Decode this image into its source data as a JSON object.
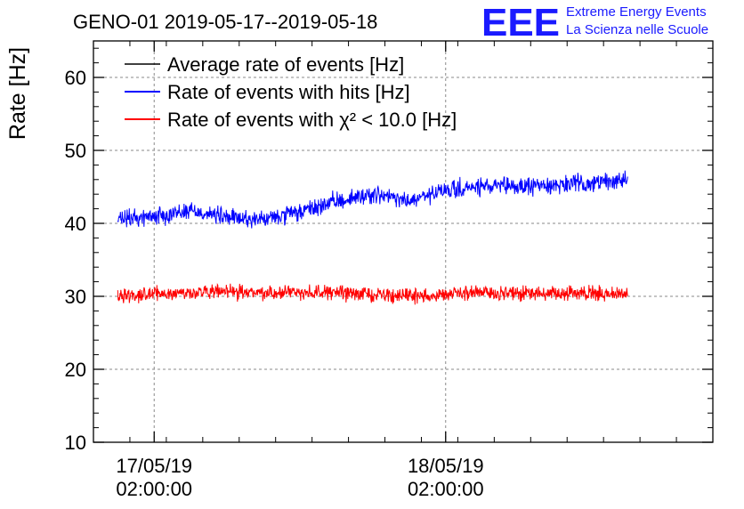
{
  "header": {
    "title": "GENO-01 2019-05-17--2019-05-18"
  },
  "logo": {
    "letters": "EEE",
    "line1": "Extreme Energy Events",
    "line2": "La Scienza nelle Scuole",
    "color": "#1a1aff"
  },
  "chart_data": {
    "type": "line",
    "ylabel": "Rate [Hz]",
    "xlabel": "",
    "ylim": [
      10,
      65
    ],
    "y_ticks": [
      10,
      20,
      30,
      40,
      50,
      60
    ],
    "grid": true,
    "legend_position": "top-left",
    "x_axis": {
      "unit": "date-time",
      "range": [
        "2019-05-16 21:00:00",
        "2019-05-19 00:00:00"
      ],
      "labeled_ticks": [
        {
          "x": "2019-05-17 02:00:00",
          "date": "17/05/19",
          "time": "02:00:00"
        },
        {
          "x": "2019-05-18 02:00:00",
          "date": "18/05/19",
          "time": "02:00:00"
        }
      ]
    },
    "series": [
      {
        "name": "Average rate of events [Hz]",
        "color": "#000000",
        "x": [],
        "values": []
      },
      {
        "name": "Rate of events with hits [Hz]",
        "color": "#0000ff",
        "x": [
          "2019-05-16 23:00",
          "2019-05-17 02:00",
          "2019-05-17 05:00",
          "2019-05-17 08:00",
          "2019-05-17 11:00",
          "2019-05-17 14:00",
          "2019-05-17 17:00",
          "2019-05-17 20:00",
          "2019-05-17 23:00",
          "2019-05-18 02:00",
          "2019-05-18 05:00",
          "2019-05-18 08:00",
          "2019-05-18 11:00",
          "2019-05-18 14:00",
          "2019-05-18 17:00"
        ],
        "values": [
          40.5,
          41.0,
          41.8,
          40.8,
          40.5,
          41.5,
          43.0,
          44.0,
          43.0,
          44.5,
          45.0,
          45.0,
          45.3,
          45.5,
          46.0
        ],
        "fluctuation": 1.0
      },
      {
        "name": "Rate of events with χ² < 10.0 [Hz]",
        "color": "#ff0000",
        "x": [
          "2019-05-16 23:00",
          "2019-05-17 02:00",
          "2019-05-17 05:00",
          "2019-05-17 08:00",
          "2019-05-17 11:00",
          "2019-05-17 14:00",
          "2019-05-17 17:00",
          "2019-05-17 20:00",
          "2019-05-17 23:00",
          "2019-05-18 02:00",
          "2019-05-18 05:00",
          "2019-05-18 08:00",
          "2019-05-18 11:00",
          "2019-05-18 14:00",
          "2019-05-18 17:00"
        ],
        "values": [
          30.2,
          30.3,
          30.5,
          30.6,
          30.5,
          30.6,
          30.5,
          30.3,
          30.0,
          30.3,
          30.5,
          30.4,
          30.3,
          30.4,
          30.3
        ],
        "fluctuation": 0.8
      }
    ]
  }
}
